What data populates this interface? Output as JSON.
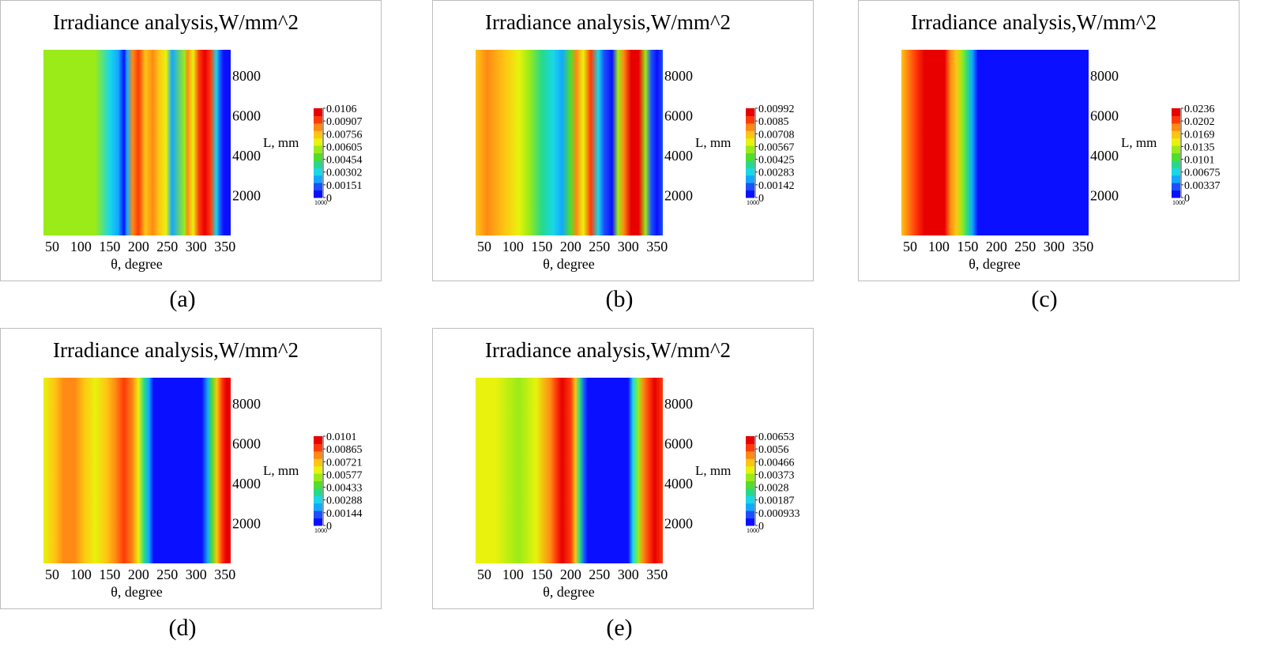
{
  "chart_data": [
    {
      "label": "(a)",
      "type": "heatmap",
      "title": "Irradiance analysis,W/mm^2",
      "xlabel": "θ, degree",
      "ylabel": "L, mm",
      "xlim": [
        35,
        360
      ],
      "ylim": [
        0,
        9300
      ],
      "xticks": [
        "50",
        "100",
        "150",
        "200",
        "250",
        "300",
        "350"
      ],
      "yticks": [
        "2000",
        "4000",
        "6000",
        "8000"
      ],
      "colorbar": {
        "labels": [
          "0.0106",
          "0.00907",
          "0.00756",
          "0.00605",
          "0.00454",
          "0.00302",
          "0.00151",
          "0"
        ],
        "bottom_label": "1000"
      },
      "bands": [
        {
          "x": 35,
          "value": 0.56
        },
        {
          "x": 125,
          "value": 0.5
        },
        {
          "x": 150,
          "value": 0.3
        },
        {
          "x": 165,
          "value": 0.16
        },
        {
          "x": 175,
          "value": 0.04
        },
        {
          "x": 180,
          "value": 0.16
        },
        {
          "x": 190,
          "value": 0.82
        },
        {
          "x": 200,
          "value": 0.92
        },
        {
          "x": 212,
          "value": 0.72
        },
        {
          "x": 225,
          "value": 0.82
        },
        {
          "x": 235,
          "value": 0.72
        },
        {
          "x": 248,
          "value": 0.62
        },
        {
          "x": 258,
          "value": 0.22
        },
        {
          "x": 280,
          "value": 0.52
        },
        {
          "x": 285,
          "value": 0.86
        },
        {
          "x": 295,
          "value": 0.68
        },
        {
          "x": 305,
          "value": 0.94
        },
        {
          "x": 315,
          "value": 1.0
        },
        {
          "x": 325,
          "value": 0.9
        },
        {
          "x": 335,
          "value": 0.26
        },
        {
          "x": 342,
          "value": 0.12
        },
        {
          "x": 348,
          "value": 0.02
        },
        {
          "x": 360,
          "value": 0.02
        }
      ]
    },
    {
      "label": "(b)",
      "type": "heatmap",
      "title": "Irradiance analysis,W/mm^2",
      "xlabel": "θ, degree",
      "ylabel": "L, mm",
      "xlim": [
        35,
        360
      ],
      "ylim": [
        0,
        9300
      ],
      "xticks": [
        "50",
        "100",
        "150",
        "200",
        "250",
        "300",
        "350"
      ],
      "yticks": [
        "2000",
        "4000",
        "6000",
        "8000"
      ],
      "colorbar": {
        "labels": [
          "0.00992",
          "0.0085",
          "0.00708",
          "0.00567",
          "0.00425",
          "0.00283",
          "0.00142",
          "0"
        ],
        "bottom_label": "1000"
      },
      "bands": [
        {
          "x": 35,
          "value": 0.74
        },
        {
          "x": 55,
          "value": 0.78
        },
        {
          "x": 85,
          "value": 0.72
        },
        {
          "x": 110,
          "value": 0.66
        },
        {
          "x": 128,
          "value": 0.54
        },
        {
          "x": 150,
          "value": 0.4
        },
        {
          "x": 170,
          "value": 0.3
        },
        {
          "x": 185,
          "value": 0.22
        },
        {
          "x": 200,
          "value": 0.48
        },
        {
          "x": 210,
          "value": 0.82
        },
        {
          "x": 222,
          "value": 0.66
        },
        {
          "x": 235,
          "value": 0.9
        },
        {
          "x": 248,
          "value": 0.3
        },
        {
          "x": 258,
          "value": 0.06
        },
        {
          "x": 272,
          "value": 0.04
        },
        {
          "x": 282,
          "value": 0.56
        },
        {
          "x": 292,
          "value": 0.8
        },
        {
          "x": 305,
          "value": 0.96
        },
        {
          "x": 318,
          "value": 1.0
        },
        {
          "x": 330,
          "value": 0.5
        },
        {
          "x": 340,
          "value": 0.1
        },
        {
          "x": 350,
          "value": 0.04
        },
        {
          "x": 360,
          "value": 0.06
        }
      ]
    },
    {
      "label": "(c)",
      "type": "heatmap",
      "title": "Irradiance analysis,W/mm^2",
      "xlabel": "θ, degree",
      "ylabel": "L, mm",
      "xlim": [
        35,
        360
      ],
      "ylim": [
        0,
        9300
      ],
      "xticks": [
        "50",
        "100",
        "150",
        "200",
        "250",
        "300",
        "350"
      ],
      "yticks": [
        "2000",
        "4000",
        "6000",
        "8000"
      ],
      "colorbar": {
        "labels": [
          "0.0236",
          "0.0202",
          "0.0169",
          "0.0135",
          "0.0101",
          "0.00675",
          "0.00337",
          "0"
        ],
        "bottom_label": "1000"
      },
      "bands": [
        {
          "x": 35,
          "value": 0.7
        },
        {
          "x": 45,
          "value": 0.84
        },
        {
          "x": 60,
          "value": 0.94
        },
        {
          "x": 75,
          "value": 1.0
        },
        {
          "x": 110,
          "value": 1.0
        },
        {
          "x": 120,
          "value": 0.84
        },
        {
          "x": 130,
          "value": 0.7
        },
        {
          "x": 140,
          "value": 0.52
        },
        {
          "x": 150,
          "value": 0.34
        },
        {
          "x": 158,
          "value": 0.16
        },
        {
          "x": 168,
          "value": 0.02
        },
        {
          "x": 360,
          "value": 0.02
        }
      ]
    },
    {
      "label": "(d)",
      "type": "heatmap",
      "title": "Irradiance analysis,W/mm^2",
      "xlabel": "θ, degree",
      "ylabel": "L, mm",
      "xlim": [
        35,
        360
      ],
      "ylim": [
        0,
        9300
      ],
      "xticks": [
        "50",
        "100",
        "150",
        "200",
        "250",
        "300",
        "350"
      ],
      "yticks": [
        "2000",
        "4000",
        "6000",
        "8000"
      ],
      "colorbar": {
        "labels": [
          "0.0101",
          "0.00865",
          "0.00721",
          "0.00577",
          "0.00433",
          "0.00288",
          "0.00144",
          "0"
        ],
        "bottom_label": "1000"
      },
      "bands": [
        {
          "x": 35,
          "value": 0.64
        },
        {
          "x": 55,
          "value": 0.72
        },
        {
          "x": 70,
          "value": 0.8
        },
        {
          "x": 90,
          "value": 0.86
        },
        {
          "x": 105,
          "value": 0.76
        },
        {
          "x": 125,
          "value": 0.68
        },
        {
          "x": 145,
          "value": 0.74
        },
        {
          "x": 160,
          "value": 0.84
        },
        {
          "x": 175,
          "value": 0.88
        },
        {
          "x": 190,
          "value": 0.78
        },
        {
          "x": 200,
          "value": 0.62
        },
        {
          "x": 210,
          "value": 0.4
        },
        {
          "x": 218,
          "value": 0.2
        },
        {
          "x": 226,
          "value": 0.03
        },
        {
          "x": 310,
          "value": 0.03
        },
        {
          "x": 320,
          "value": 0.22
        },
        {
          "x": 328,
          "value": 0.46
        },
        {
          "x": 336,
          "value": 0.7
        },
        {
          "x": 345,
          "value": 0.9
        },
        {
          "x": 352,
          "value": 0.98
        },
        {
          "x": 360,
          "value": 0.98
        }
      ]
    },
    {
      "label": "(e)",
      "type": "heatmap",
      "title": "Irradiance analysis,W/mm^2",
      "xlabel": "θ, degree",
      "ylabel": "L, mm",
      "xlim": [
        35,
        360
      ],
      "ylim": [
        0,
        9300
      ],
      "xticks": [
        "50",
        "100",
        "150",
        "200",
        "250",
        "300",
        "350"
      ],
      "yticks": [
        "2000",
        "4000",
        "6000",
        "8000"
      ],
      "colorbar": {
        "labels": [
          "0.00653",
          "0.0056",
          "0.00466",
          "0.00373",
          "0.0028",
          "0.00187",
          "0.000933",
          "0"
        ],
        "bottom_label": "1000"
      },
      "bands": [
        {
          "x": 35,
          "value": 0.68
        },
        {
          "x": 70,
          "value": 0.62
        },
        {
          "x": 110,
          "value": 0.58
        },
        {
          "x": 140,
          "value": 0.66
        },
        {
          "x": 165,
          "value": 0.8
        },
        {
          "x": 175,
          "value": 0.94
        },
        {
          "x": 185,
          "value": 1.0
        },
        {
          "x": 200,
          "value": 0.94
        },
        {
          "x": 208,
          "value": 0.7
        },
        {
          "x": 216,
          "value": 0.4
        },
        {
          "x": 224,
          "value": 0.12
        },
        {
          "x": 230,
          "value": 0.03
        },
        {
          "x": 300,
          "value": 0.03
        },
        {
          "x": 308,
          "value": 0.24
        },
        {
          "x": 318,
          "value": 0.56
        },
        {
          "x": 326,
          "value": 0.8
        },
        {
          "x": 336,
          "value": 0.94
        },
        {
          "x": 346,
          "value": 0.96
        },
        {
          "x": 360,
          "value": 0.92
        }
      ]
    }
  ],
  "colormap": [
    "#0a10ff",
    "#1c50ff",
    "#13a8ff",
    "#18d8e8",
    "#26d98a",
    "#52dd2a",
    "#9aeb18",
    "#e8f20c",
    "#ffc414",
    "#ff8a14",
    "#ff3a0a",
    "#e80000"
  ]
}
